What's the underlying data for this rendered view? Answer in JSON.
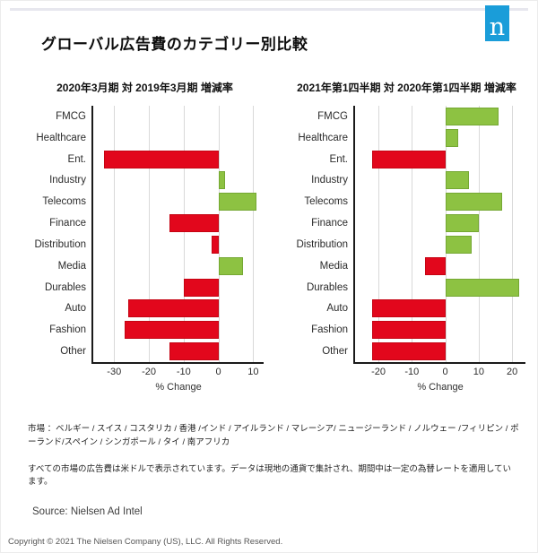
{
  "page": {
    "title": "グローバル広告費のカテゴリー別比較",
    "logo_letter": "n",
    "markets_note": "市場 ：ベルギー / スイス / コスタリカ / 香港 /インド / アイルランド / マレーシア/ ニュージーランド / ノルウェー /フィリピン / ポーランド/スペイン / シンガポール / タイ / 南アフリカ",
    "currency_note": "すべての市場の広告費は米ドルで表示されています。データは現地の通貨で集計され、期間中は一定の為替レートを適用しています。",
    "source": "Source: Nielsen Ad Intel",
    "copyright": "Copyright © 2021 The Nielsen Company (US), LLC. All Rights Reserved."
  },
  "colors": {
    "positive_green": "#8dc242",
    "positive_green_border": "#75a833",
    "negative_red": "#e2071c",
    "negative_red_border": "#c50413",
    "logo_blue": "#1a9dd9",
    "gridline_gray": "#d9d9d9",
    "axis_black": "#1a1a1a"
  },
  "chart_data": [
    {
      "type": "bar",
      "orientation": "horizontal",
      "title": "2020年3月期 対 2019年3月期 増減率",
      "xlabel": "% Change",
      "categories": [
        "FMCG",
        "Healthcare",
        "Ent.",
        "Industry",
        "Telecoms",
        "Finance",
        "Distribution",
        "Media",
        "Durables",
        "Auto",
        "Fashion",
        "Other"
      ],
      "values": [
        0,
        0,
        -33,
        2,
        11,
        -14,
        -2,
        7,
        -10,
        -26,
        -27,
        -14
      ],
      "xlim": [
        -36,
        13
      ],
      "ticks": [
        -30,
        -20,
        -10,
        0,
        10
      ],
      "grid": true,
      "legend": "none",
      "color_rule": "positive bars green, negative bars red, zero bars hidden"
    },
    {
      "type": "bar",
      "orientation": "horizontal",
      "title": "2021年第1四半期 対 2020年第1四半期 増減率",
      "xlabel": "% Change",
      "categories": [
        "FMCG",
        "Healthcare",
        "Ent.",
        "Industry",
        "Telecoms",
        "Finance",
        "Distribution",
        "Media",
        "Durables",
        "Auto",
        "Fashion",
        "Other"
      ],
      "values": [
        16,
        4,
        -22,
        7,
        17,
        10,
        8,
        -6,
        22,
        -22,
        -22,
        -22
      ],
      "xlim": [
        -27,
        24
      ],
      "ticks": [
        -20,
        -10,
        0,
        10,
        20
      ],
      "grid": true,
      "legend": "none",
      "color_rule": "positive bars green, negative bars red, zero bars hidden"
    }
  ]
}
